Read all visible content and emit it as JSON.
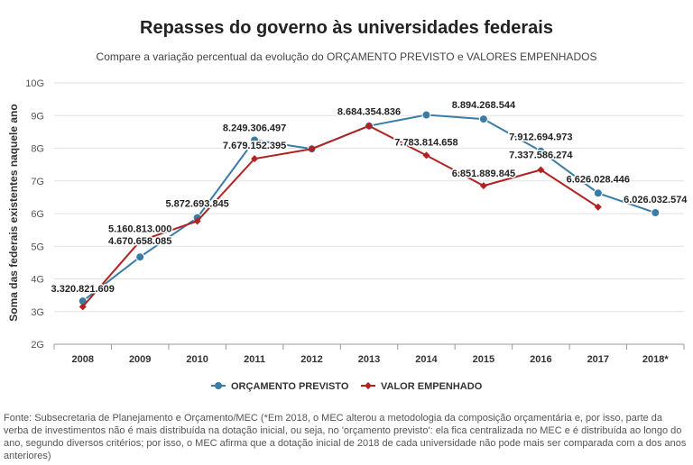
{
  "chart_data": {
    "type": "line",
    "title": "Repasses do governo às universidades federais",
    "subtitle": "Compare a variação percentual da evolução do ORÇAMENTO PREVISTO e VALORES EMPENHADOS",
    "ylabel": "Soma das federais existentes naquele ano",
    "xlabel": "",
    "categories": [
      "2008",
      "2009",
      "2010",
      "2011",
      "2012",
      "2013",
      "2014",
      "2015",
      "2016",
      "2017",
      "2018*"
    ],
    "ylim": [
      2,
      10
    ],
    "y_ticks": [
      "2G",
      "3G",
      "4G",
      "5G",
      "6G",
      "7G",
      "8G",
      "9G",
      "10G"
    ],
    "grid": true,
    "legend_position": "bottom",
    "series": [
      {
        "name": "ORÇAMENTO PREVISTO",
        "color": "#3a7ca5",
        "marker": "circle",
        "values": [
          3.320821609,
          4.670658085,
          5.872693845,
          8.249306497,
          7.98,
          8.684354836,
          9.02,
          8.894268544,
          7.912694973,
          6.626028446,
          6.026032574
        ],
        "labels": [
          "3.320.821.609",
          "4.670.658.085",
          "5.872.693.845",
          "8.249.306.497",
          "",
          "",
          "",
          "8.894.268.544",
          "7.912.694.973",
          "6.626.028.446",
          "6.026.032.574"
        ]
      },
      {
        "name": "VALOR EMPENHADO",
        "color": "#b22222",
        "marker": "diamond",
        "values": [
          3.15,
          5.160813,
          5.77,
          7.679152395,
          7.98,
          8.684354836,
          7.783814658,
          6.851889845,
          7.337586274,
          6.2,
          null
        ],
        "labels": [
          "",
          "5.160.813.000",
          "",
          "7.679.152.395",
          "",
          "8.684.354.836",
          "7.783.814.658",
          "6.851.889.845",
          "7.337.586.274",
          "",
          ""
        ]
      }
    ]
  },
  "source": "Fonte: Subsecretaria de Planejamento e Orçamento/MEC (*Em 2018, o MEC alterou a metodologia da composição orçamentária e, por isso, parte da verba de investimentos não é mais distribuída na dotação inicial, ou seja, no 'orçamento previsto': ela fica centralizada no MEC e é distribuída ao longo do ano, segundo diversos critérios; por isso, o MEC afirma que a dotação inicial de 2018 de cada universidade não pode mais ser comparada com a dos anos anteriores)"
}
